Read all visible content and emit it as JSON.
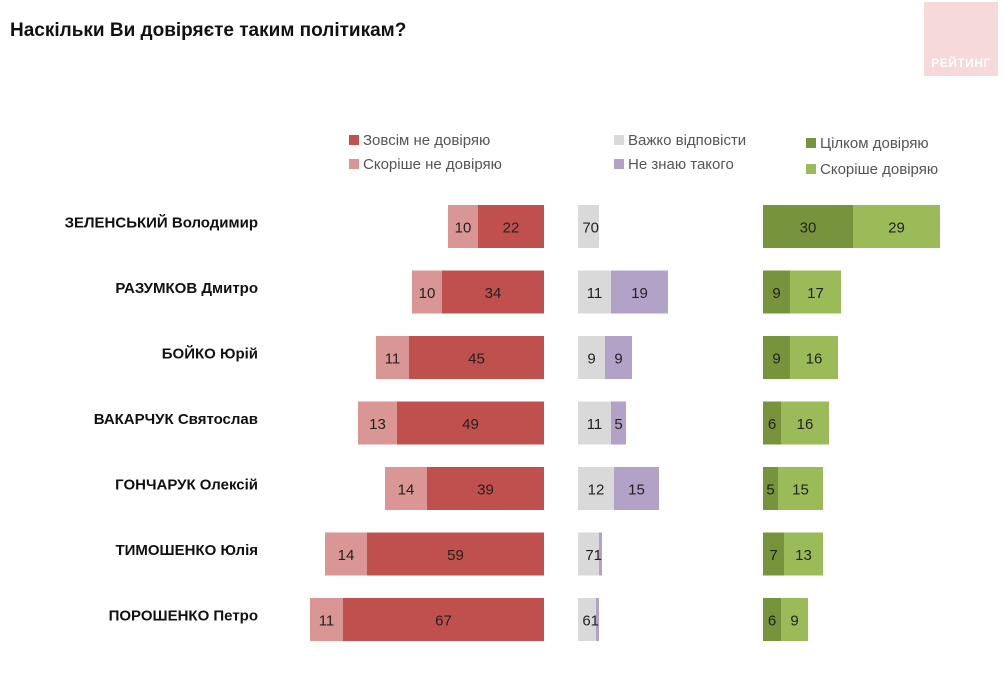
{
  "title": "Наскільки Ви довіряєте таким політикам?",
  "logo_text": "РЕЙТИНГ",
  "chart_data": {
    "type": "bar",
    "title": "Наскільки Ви довіряєте таким політикам?",
    "categories": [
      "ЗЕЛЕНСЬКИЙ Володимир",
      "РАЗУМКОВ Дмитро",
      "БОЙКО Юрій",
      "ВАКАРЧУК Святослав",
      "ГОНЧАРУК Олексій",
      "ТИМОШЕНКО Юлія",
      "ПОРОШЕНКО Петро"
    ],
    "series": [
      {
        "name": "Зовсім не довіряю",
        "values": [
          22,
          34,
          45,
          49,
          39,
          59,
          67
        ],
        "color": "#c0504d"
      },
      {
        "name": "Скоріше не довіряю",
        "values": [
          10,
          10,
          11,
          13,
          14,
          14,
          11
        ],
        "color": "#d99694"
      },
      {
        "name": "Важко відповісти",
        "values": [
          7,
          11,
          9,
          11,
          12,
          7,
          6
        ],
        "color": "#d9d9d9"
      },
      {
        "name": "Не знаю такого",
        "values": [
          0,
          19,
          9,
          5,
          15,
          1,
          1
        ],
        "color": "#b3a2c7"
      },
      {
        "name": "Цілком довіряю",
        "values": [
          30,
          9,
          9,
          6,
          5,
          7,
          6
        ],
        "color": "#77933c"
      },
      {
        "name": "Скоріше довіряю",
        "values": [
          29,
          17,
          16,
          16,
          15,
          13,
          9
        ],
        "color": "#9bbb59"
      }
    ],
    "legend_position": "top"
  }
}
